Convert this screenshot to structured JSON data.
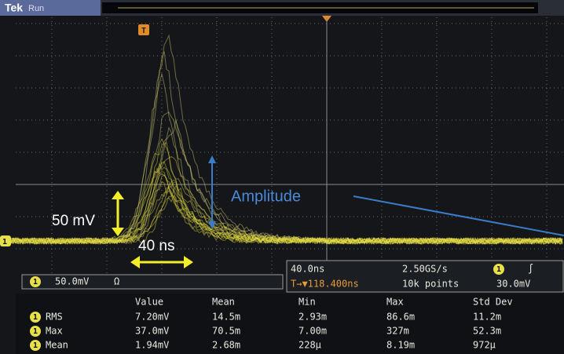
{
  "header": {
    "brand": "Tek",
    "status": "Run",
    "trigger_marker": "T"
  },
  "annotations": {
    "vertical_scale": "50  mV",
    "time_span": "40 ns",
    "amplitude": "Amplitude"
  },
  "channel_marker": "1",
  "channel_box": {
    "channel": "1",
    "scale": "50.0mV",
    "coupling": "Ω"
  },
  "timebase_box": {
    "time_per_div": "40.0ns",
    "sample_rate": "2.50GS/s",
    "trigger_channel": "1",
    "trigger_slope": "∫",
    "trigger_position": "T→▼118.400ns",
    "record_length": "10k points",
    "trigger_level": "30.0mV"
  },
  "measurements": {
    "columns": [
      "Value",
      "Mean",
      "Min",
      "Max",
      "Std Dev"
    ],
    "rows": [
      [
        "1",
        "RMS",
        "7.20mV",
        "14.5m",
        "2.93m",
        "86.6m",
        "11.2m"
      ],
      [
        "1",
        "Max",
        "37.0mV",
        "70.5m",
        "7.00m",
        "327m",
        "52.3m"
      ],
      [
        "1",
        "Mean",
        "1.94mV",
        "2.68m",
        "228µ",
        "8.19m",
        "972µ"
      ]
    ]
  }
}
